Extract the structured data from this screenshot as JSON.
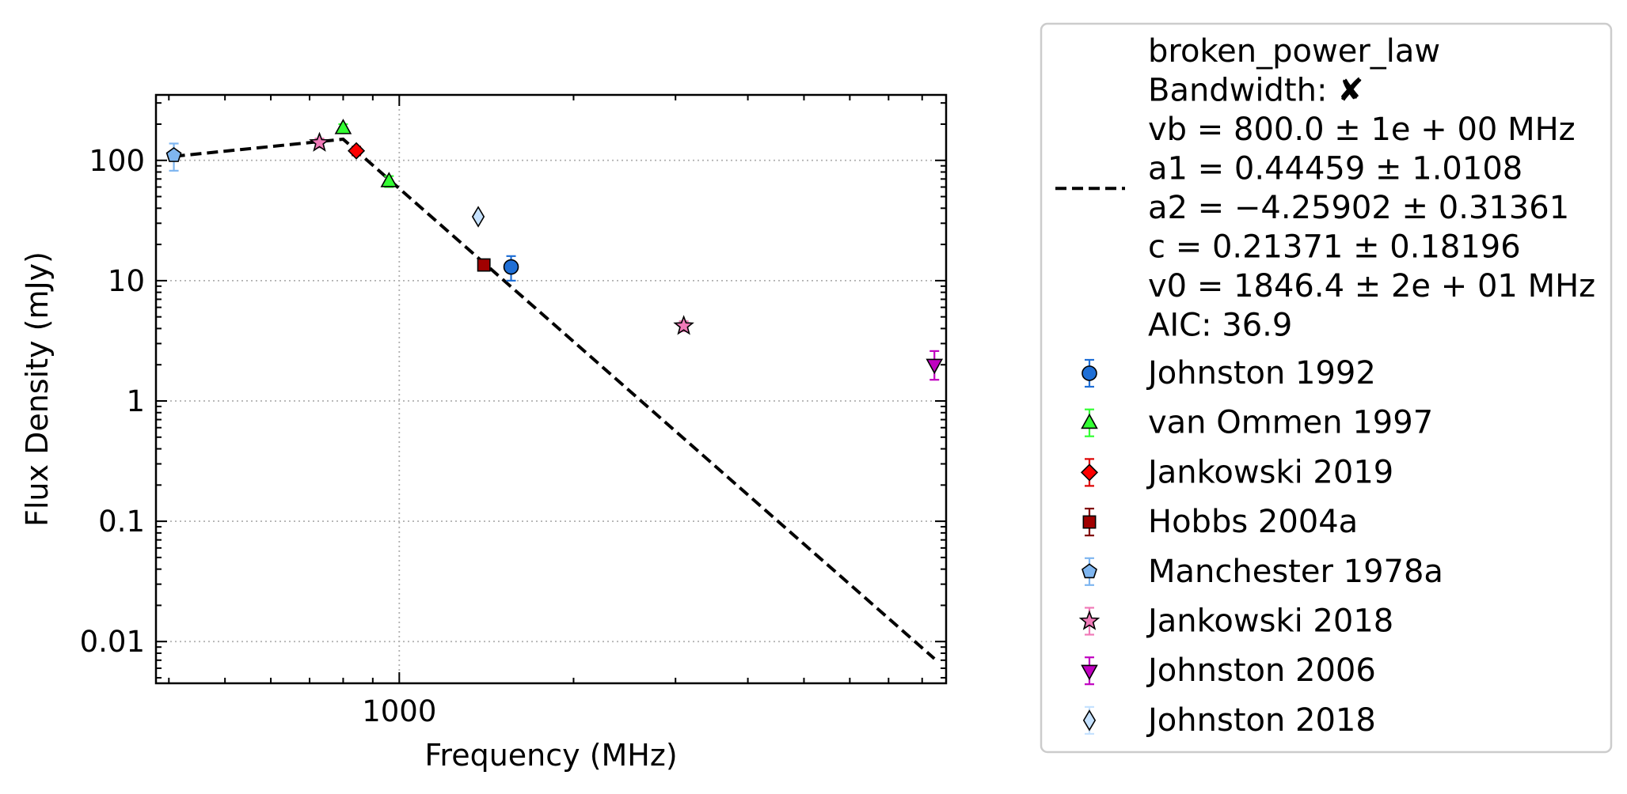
{
  "chart_data": {
    "type": "scatter",
    "xlabel": "Frequency (MHz)",
    "ylabel": "Flux Density (mJy)",
    "x_scale": "log",
    "y_scale": "log",
    "xlim": [
      380,
      8800
    ],
    "ylim": [
      0.0045,
      350
    ],
    "x_tick_labels": [
      {
        "value": 1000,
        "label": "1000"
      }
    ],
    "y_tick_labels": [
      {
        "value": 0.01,
        "label": "0.01"
      },
      {
        "value": 0.1,
        "label": "0.1"
      },
      {
        "value": 1,
        "label": "1"
      },
      {
        "value": 10,
        "label": "10"
      },
      {
        "value": 100,
        "label": "100"
      }
    ],
    "grid": true,
    "legend_position": "outside-right",
    "fit": {
      "name": "broken_power_law",
      "legend_lines": [
        "broken_power_law",
        "Bandwidth: ✘",
        "vb = 800.0 ± 1e + 00 MHz",
        "a1 = 0.44459 ± 1.0108",
        "a2 = −4.25902 ± 0.31361",
        "c = 0.21371 ± 0.18196",
        "v0 = 1846.4 ± 2e + 01 MHz",
        "AIC: 36.9"
      ],
      "x": [
        408,
        800,
        8400
      ],
      "y": [
        108,
        150,
        0.0072
      ],
      "color": "#000000",
      "style": "dashed"
    },
    "series": [
      {
        "name": "Johnston 1992",
        "marker": "circle",
        "color": "#1f6fd6",
        "err_color": "#1f6fd6",
        "points": [
          {
            "x": 1560,
            "y": 13,
            "ylo": 10,
            "yhi": 16
          }
        ]
      },
      {
        "name": "van Ommen 1997",
        "marker": "triangle-up",
        "color": "#33ff33",
        "err_color": "#33ff33",
        "points": [
          {
            "x": 800,
            "y": 185,
            "ylo": 170,
            "yhi": 200
          },
          {
            "x": 960,
            "y": 67,
            "ylo": 60,
            "yhi": 74
          }
        ]
      },
      {
        "name": "Jankowski 2019",
        "marker": "diamond",
        "color": "#ff0000",
        "err_color": "#dd0000",
        "points": [
          {
            "x": 843,
            "y": 120,
            "ylo": 110,
            "yhi": 130
          }
        ]
      },
      {
        "name": "Hobbs 2004a",
        "marker": "square",
        "color": "#a00000",
        "err_color": "#800000",
        "points": [
          {
            "x": 1400,
            "y": 13.5,
            "ylo": 12.5,
            "yhi": 14.5
          }
        ]
      },
      {
        "name": "Manchester 1978a",
        "marker": "pentagon",
        "color": "#7fb6f0",
        "err_color": "#7fb6f0",
        "points": [
          {
            "x": 408,
            "y": 110,
            "ylo": 82,
            "yhi": 138
          }
        ]
      },
      {
        "name": "Jankowski 2018",
        "marker": "star",
        "color": "#f07ab8",
        "err_color": "#f07ab8",
        "points": [
          {
            "x": 728,
            "y": 140,
            "ylo": 128,
            "yhi": 152
          },
          {
            "x": 3100,
            "y": 4.2,
            "ylo": 3.8,
            "yhi": 4.6
          }
        ]
      },
      {
        "name": "Johnston 2006",
        "marker": "triangle-down",
        "color": "#c000c0",
        "err_color": "#c000c0",
        "points": [
          {
            "x": 8400,
            "y": 2.0,
            "ylo": 1.5,
            "yhi": 2.6
          }
        ]
      },
      {
        "name": "Johnston 2018",
        "marker": "thin-diamond",
        "color": "#c6e2ff",
        "err_color": "#c6e2ff",
        "points": [
          {
            "x": 1369,
            "y": 34,
            "ylo": 33,
            "yhi": 35
          }
        ]
      }
    ]
  }
}
